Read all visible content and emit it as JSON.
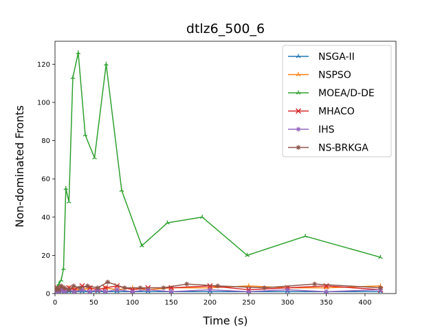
{
  "chart_data": {
    "type": "line",
    "title": "dtlz6_500_6",
    "xlabel": "Time (s)",
    "ylabel": "Non-dominated Fronts",
    "xlim": [
      0,
      440
    ],
    "ylim": [
      0,
      132
    ],
    "xticks": [
      0,
      50,
      100,
      150,
      200,
      250,
      300,
      350,
      400
    ],
    "yticks": [
      0,
      20,
      40,
      60,
      80,
      100,
      120
    ],
    "grid": false,
    "legend_position": "top-right",
    "series": [
      {
        "name": "NSGA-II",
        "color": "#1f77b4",
        "marker": "tri",
        "x": [
          1,
          3,
          5,
          8,
          12,
          18,
          25,
          35,
          45,
          55,
          65,
          80,
          100,
          120,
          150,
          200,
          250,
          300,
          350,
          420
        ],
        "y": [
          1,
          1,
          1,
          1,
          1,
          1,
          1,
          1,
          1,
          1,
          1,
          1,
          1,
          1,
          1,
          1,
          1,
          1,
          1,
          1
        ]
      },
      {
        "name": "NSPSO",
        "color": "#ff7f0e",
        "marker": "tri",
        "x": [
          1,
          3,
          5,
          8,
          12,
          18,
          25,
          35,
          45,
          55,
          65,
          80,
          100,
          120,
          150,
          200,
          250,
          300,
          350,
          420
        ],
        "y": [
          2,
          3,
          2,
          3,
          2,
          3,
          2,
          2,
          3,
          2,
          3,
          2,
          3,
          2,
          3,
          3,
          4,
          3,
          3,
          4
        ]
      },
      {
        "name": "MOEA/D-DE",
        "color": "#2ca02c",
        "marker": "tri",
        "x": [
          1,
          3,
          5,
          8,
          11,
          14,
          18,
          23,
          30,
          39,
          51,
          66,
          86,
          112,
          145,
          190,
          248,
          323,
          420
        ],
        "y": [
          1,
          3,
          5,
          7,
          13,
          55,
          48,
          113,
          126,
          83,
          71,
          120,
          54,
          25,
          37,
          40,
          20,
          30,
          19
        ]
      },
      {
        "name": "MHACO",
        "color": "#d62728",
        "marker": "x",
        "x": [
          1,
          3,
          5,
          8,
          12,
          18,
          25,
          35,
          45,
          55,
          65,
          80,
          100,
          120,
          150,
          200,
          250,
          300,
          350,
          420
        ],
        "y": [
          2,
          3,
          2,
          3,
          2,
          3,
          2,
          4,
          3,
          2,
          3,
          4,
          2,
          3,
          3,
          4,
          2,
          3,
          4,
          2
        ]
      },
      {
        "name": "IHS",
        "color": "#9467bd",
        "marker": "star",
        "x": [
          1,
          3,
          5,
          8,
          12,
          18,
          25,
          35,
          45,
          55,
          65,
          80,
          100,
          120,
          150,
          200,
          250,
          300,
          350,
          420
        ],
        "y": [
          1,
          2,
          1,
          2,
          1,
          2,
          1,
          2,
          1,
          2,
          1,
          2,
          1,
          2,
          1,
          2,
          1,
          2,
          1,
          2
        ]
      },
      {
        "name": "NS-BRKGA",
        "color": "#8c564b",
        "marker": "star",
        "x": [
          1,
          3,
          5,
          8,
          12,
          18,
          24,
          32,
          42,
          55,
          68,
          90,
          110,
          140,
          170,
          210,
          270,
          335,
          420
        ],
        "y": [
          2,
          3,
          2,
          4,
          3,
          2,
          4,
          3,
          4,
          3,
          6,
          3,
          3,
          3,
          5,
          4,
          3,
          5,
          3
        ]
      }
    ]
  }
}
